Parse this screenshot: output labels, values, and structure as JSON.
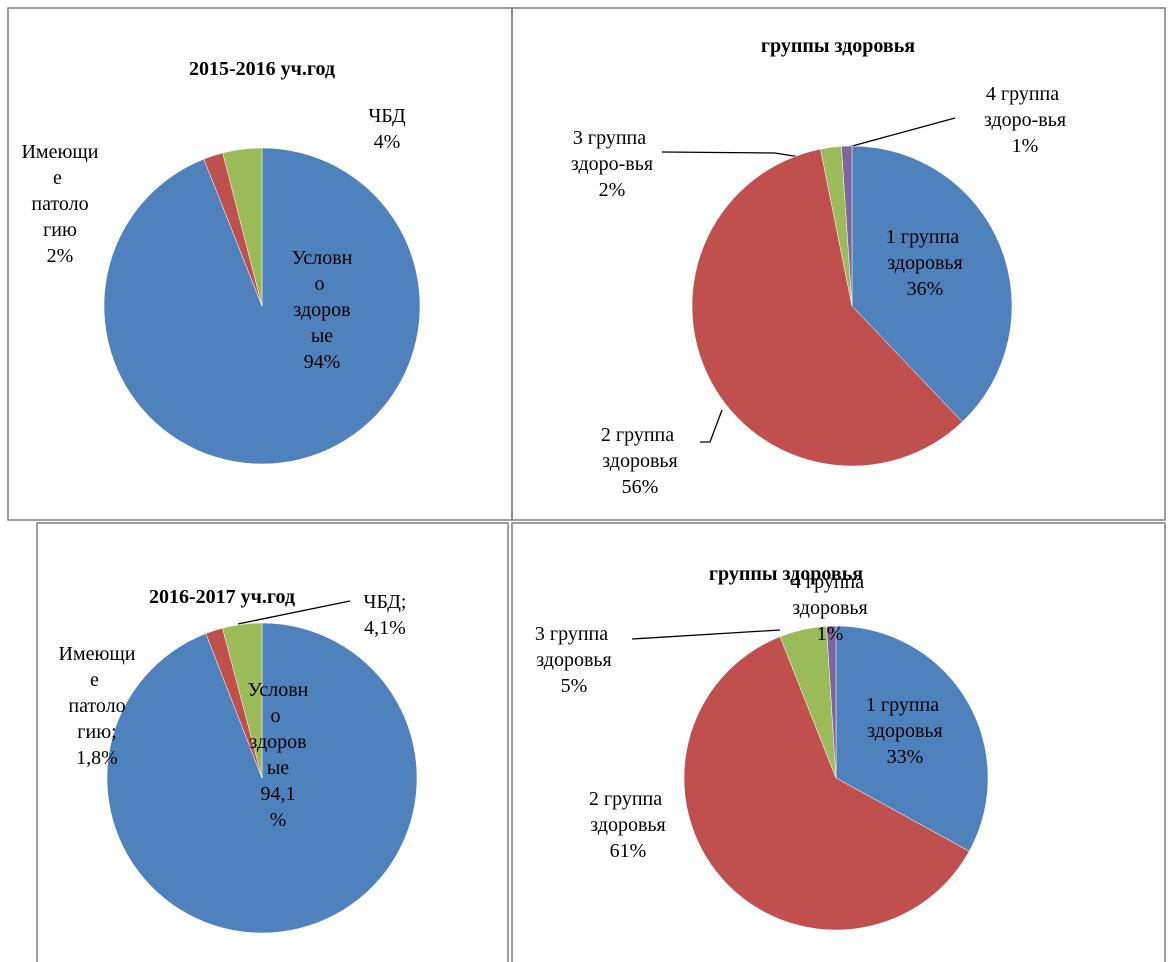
{
  "chart_data": [
    {
      "type": "pie",
      "title": "2015-2016 уч.год",
      "categories": [
        "Условно здоровые",
        "Имеющие патологию",
        "ЧБД"
      ],
      "values": [
        94,
        2,
        4
      ],
      "value_labels": [
        "94%",
        "2%",
        "4%"
      ],
      "colors": [
        "#4f81bd",
        "#c0504d",
        "#9bbb59"
      ]
    },
    {
      "type": "pie",
      "title": "группы здоровья",
      "categories": [
        "1 группа здоровья",
        "2 группа здоровья",
        "3 группа здоро-вья",
        "4 группа здоро-вья"
      ],
      "values": [
        36,
        56,
        2,
        1
      ],
      "value_labels": [
        "36%",
        "56%",
        "2%",
        "1%"
      ],
      "colors": [
        "#4f81bd",
        "#c0504d",
        "#9bbb59",
        "#8064a2"
      ]
    },
    {
      "type": "pie",
      "title": "2016-2017 уч.год",
      "categories": [
        "Условно здоровые",
        "Имеющие патологию;",
        "ЧБД;"
      ],
      "values": [
        94.1,
        1.8,
        4.1
      ],
      "value_labels": [
        "94,1%",
        "1,8%",
        "4,1%"
      ],
      "colors": [
        "#4f81bd",
        "#c0504d",
        "#9bbb59"
      ]
    },
    {
      "type": "pie",
      "title": "группы здоровья",
      "categories": [
        "1 группа здоровья",
        "2 группа здоровья",
        "3 группа здоровья",
        "4 группа здоровья"
      ],
      "values": [
        33,
        61,
        5,
        1
      ],
      "value_labels": [
        "33%",
        "61%",
        "5%",
        "1%"
      ],
      "colors": [
        "#4f81bd",
        "#c0504d",
        "#9bbb59",
        "#8064a2"
      ]
    }
  ]
}
